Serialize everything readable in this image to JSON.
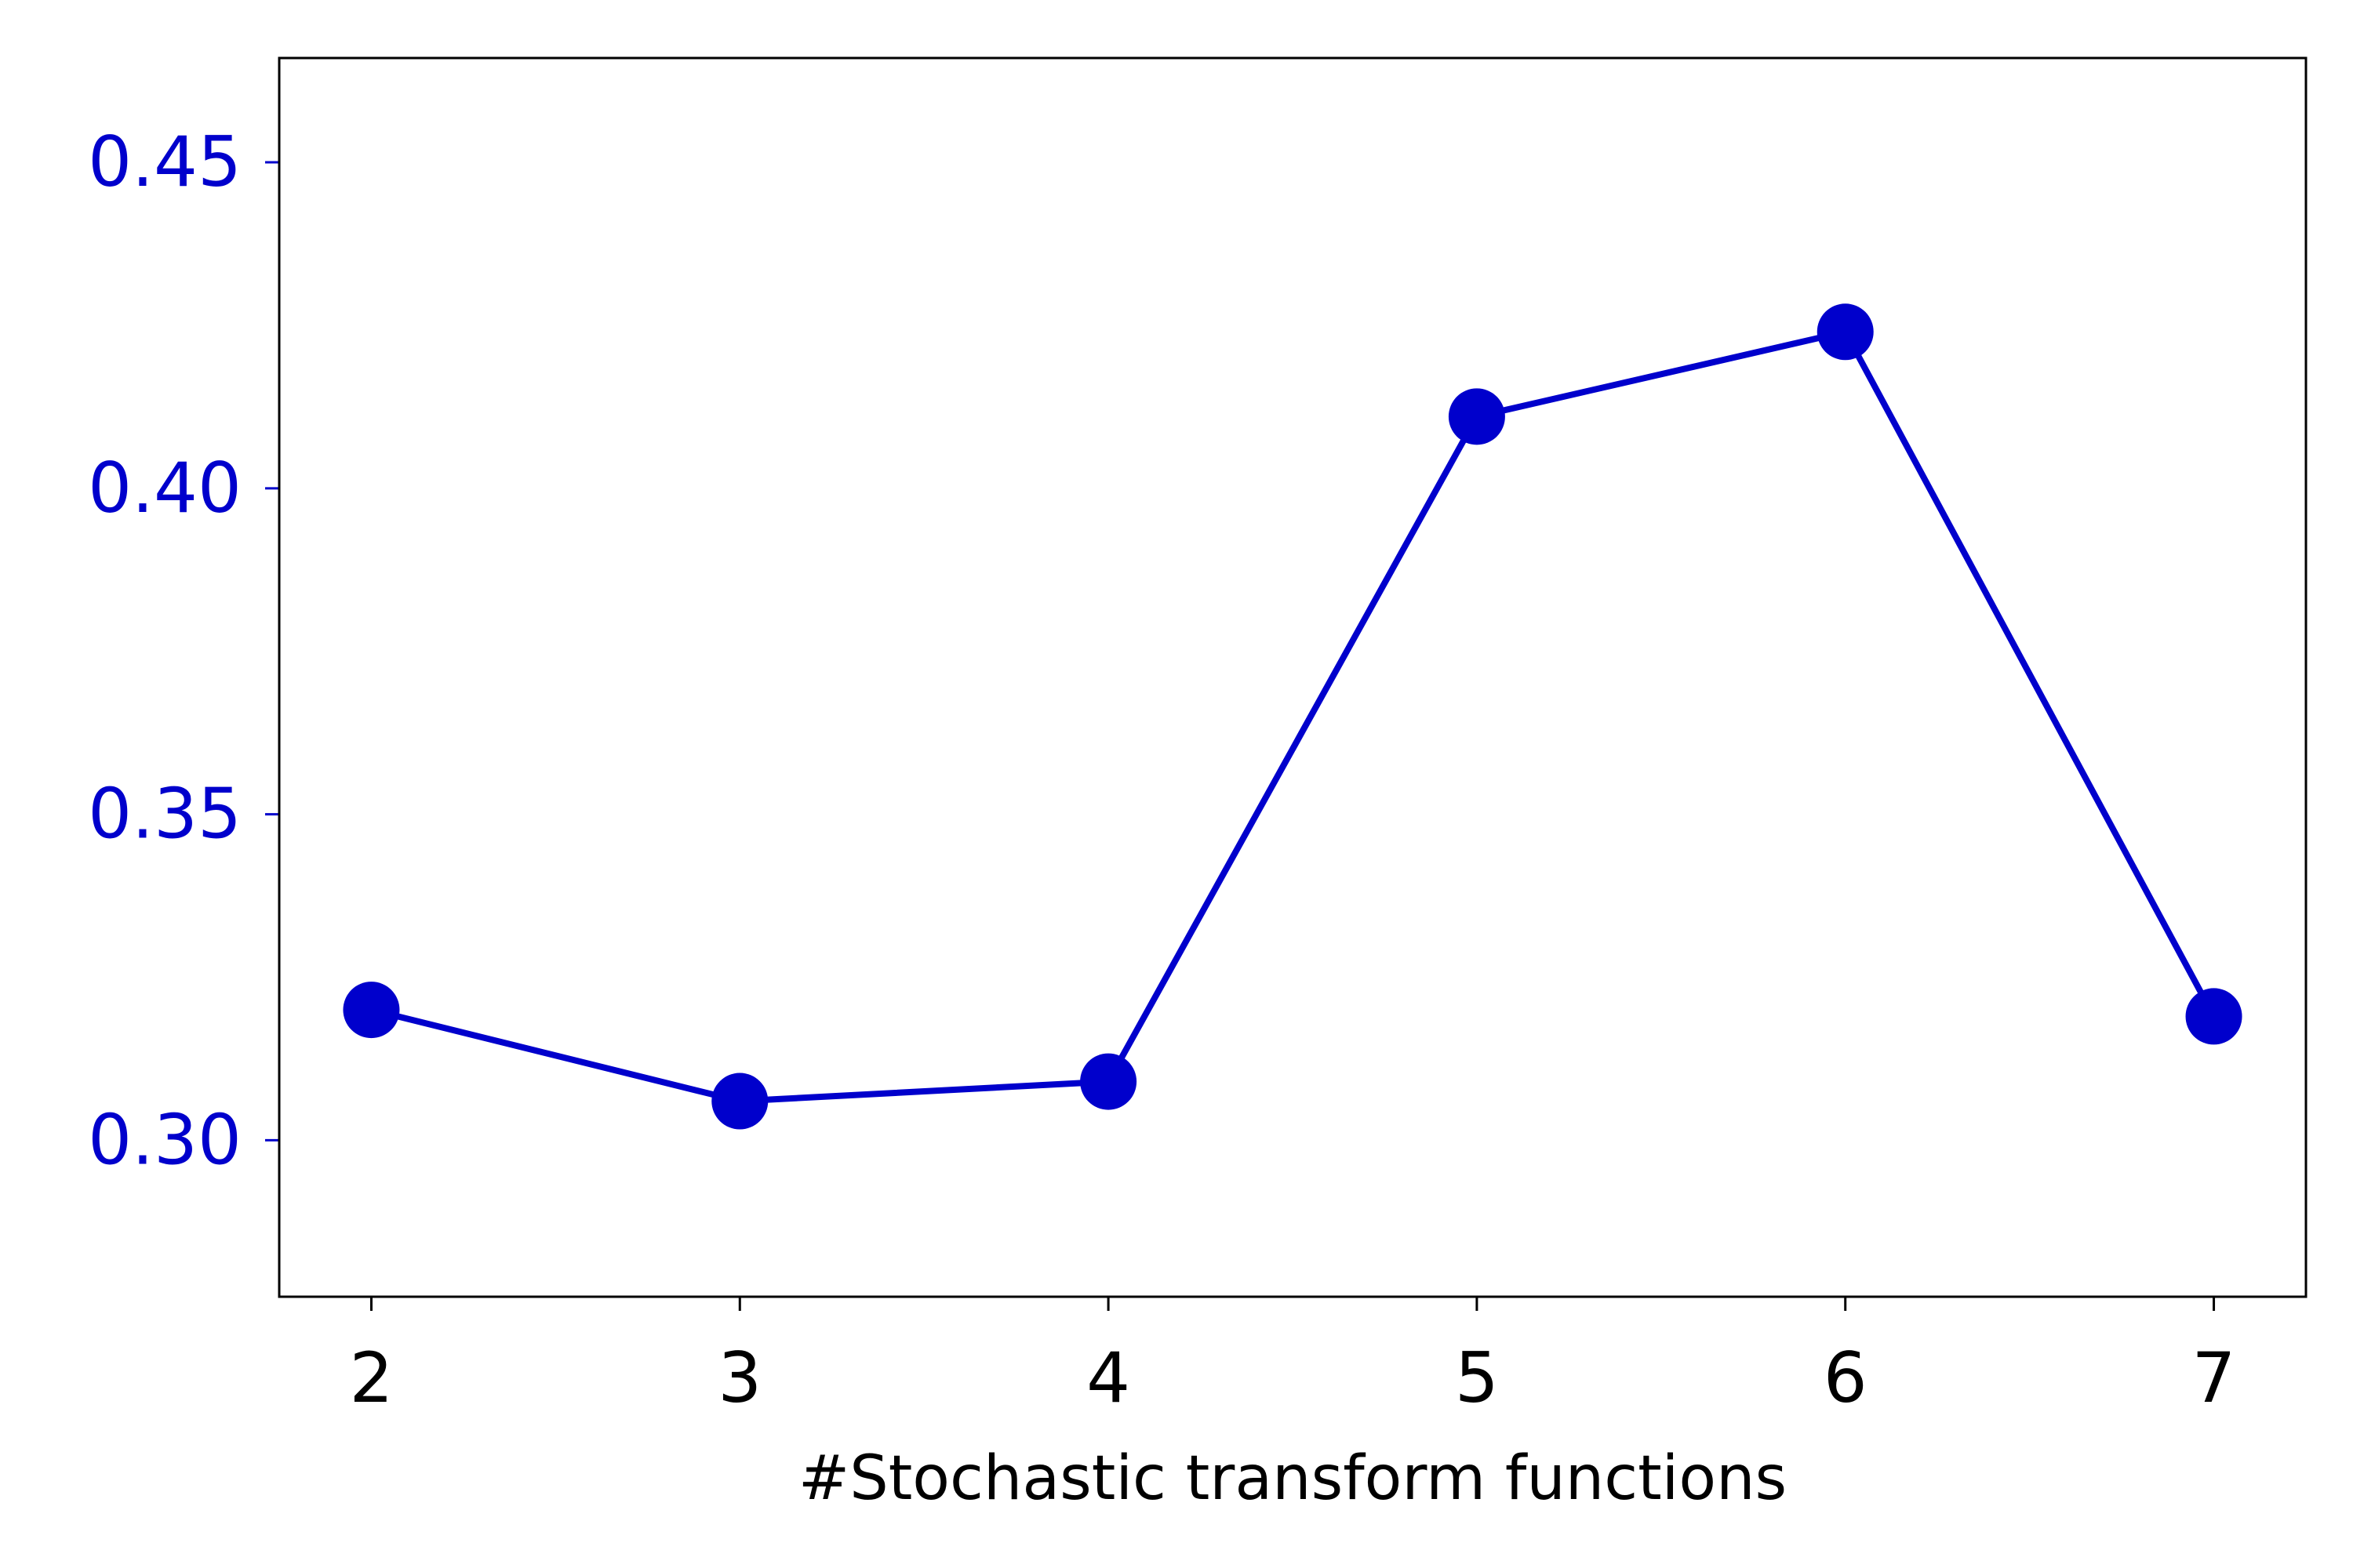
{
  "chart_data": {
    "type": "line",
    "title": "",
    "xlabel": "#Stochastic transform functions",
    "ylabel": "",
    "x": [
      2,
      3,
      4,
      5,
      6,
      7
    ],
    "series": [
      {
        "values": [
          0.32,
          0.306,
          0.309,
          0.411,
          0.424,
          0.319
        ]
      }
    ],
    "xlim": [
      1.75,
      7.25
    ],
    "ylim": [
      0.276,
      0.466
    ],
    "xticks": [
      2,
      3,
      4,
      5,
      6,
      7
    ],
    "xtick_labels": [
      "2",
      "3",
      "4",
      "5",
      "6",
      "7"
    ],
    "yticks": [
      0.3,
      0.35,
      0.4,
      0.45
    ],
    "ytick_labels": [
      "0.30",
      "0.35",
      "0.40",
      "0.45"
    ],
    "grid": false,
    "legend": false
  },
  "colors": {
    "series": "#0000cc",
    "ytick_text": "#0000cc",
    "xtick_text": "#000000",
    "axes": "#000000"
  }
}
